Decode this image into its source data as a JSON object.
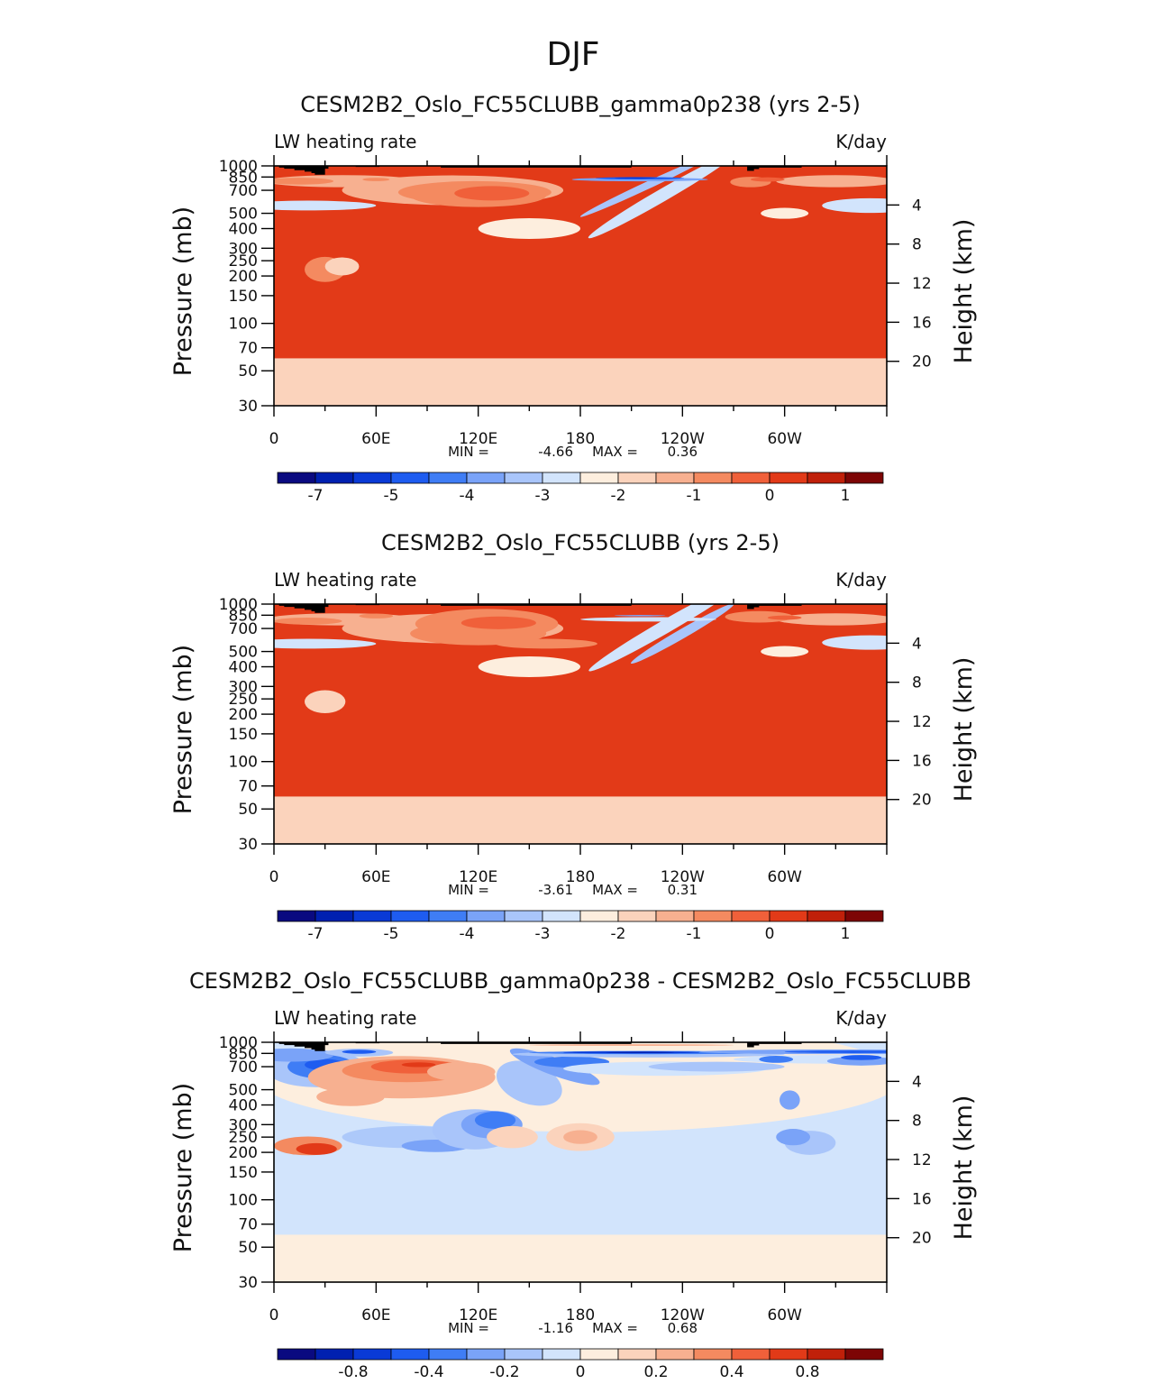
{
  "figure_title": "DJF",
  "chart_data": [
    {
      "type": "heatmap",
      "title": "CESM2B2_Oslo_FC55CLUBB_gamma0p238 (yrs 2-5)",
      "left_label": "LW heating rate",
      "right_label": "K/day",
      "ylabel": "Pressure (mb)",
      "ylabel_right": "Height (km)",
      "x_ticks": [
        "0",
        "60E",
        "120E",
        "180",
        "120W",
        "60W"
      ],
      "x_tick_lons": [
        0,
        60,
        120,
        180,
        240,
        300
      ],
      "y_ticks": [
        "30",
        "50",
        "70",
        "100",
        "150",
        "200",
        "250",
        "300",
        "400",
        "500",
        "700",
        "850",
        "1000"
      ],
      "y_tick_values": [
        30,
        50,
        70,
        100,
        150,
        200,
        250,
        300,
        400,
        500,
        700,
        850,
        1000
      ],
      "height_ticks": [
        "20",
        "16",
        "12",
        "8",
        "4"
      ],
      "height_values": [
        20,
        16,
        12,
        8,
        4
      ],
      "min_label": "MIN =",
      "min_value": "-4.66",
      "max_label": "MAX =",
      "max_value": "0.36",
      "colorbar_ticks": [
        "-7",
        "-5",
        "-4",
        "-3",
        "-2",
        "-1",
        "0",
        "1"
      ],
      "colorbar_levels": [
        -7,
        -5,
        -4,
        -3,
        -2,
        -1,
        0,
        1
      ]
    },
    {
      "type": "heatmap",
      "title": "CESM2B2_Oslo_FC55CLUBB (yrs 2-5)",
      "left_label": "LW heating rate",
      "right_label": "K/day",
      "ylabel": "Pressure (mb)",
      "ylabel_right": "Height (km)",
      "x_ticks": [
        "0",
        "60E",
        "120E",
        "180",
        "120W",
        "60W"
      ],
      "x_tick_lons": [
        0,
        60,
        120,
        180,
        240,
        300
      ],
      "y_ticks": [
        "30",
        "50",
        "70",
        "100",
        "150",
        "200",
        "250",
        "300",
        "400",
        "500",
        "700",
        "850",
        "1000"
      ],
      "y_tick_values": [
        30,
        50,
        70,
        100,
        150,
        200,
        250,
        300,
        400,
        500,
        700,
        850,
        1000
      ],
      "height_ticks": [
        "20",
        "16",
        "12",
        "8",
        "4"
      ],
      "height_values": [
        20,
        16,
        12,
        8,
        4
      ],
      "min_label": "MIN =",
      "min_value": "-3.61",
      "max_label": "MAX =",
      "max_value": "0.31",
      "colorbar_ticks": [
        "-7",
        "-5",
        "-4",
        "-3",
        "-2",
        "-1",
        "0",
        "1"
      ],
      "colorbar_levels": [
        -7,
        -5,
        -4,
        -3,
        -2,
        -1,
        0,
        1
      ]
    },
    {
      "type": "heatmap",
      "title": "CESM2B2_Oslo_FC55CLUBB_gamma0p238 - CESM2B2_Oslo_FC55CLUBB",
      "left_label": "LW heating rate",
      "right_label": "K/day",
      "ylabel": "Pressure (mb)",
      "ylabel_right": "Height (km)",
      "x_ticks": [
        "0",
        "60E",
        "120E",
        "180",
        "120W",
        "60W"
      ],
      "x_tick_lons": [
        0,
        60,
        120,
        180,
        240,
        300
      ],
      "y_ticks": [
        "30",
        "50",
        "70",
        "100",
        "150",
        "200",
        "250",
        "300",
        "400",
        "500",
        "700",
        "850",
        "1000"
      ],
      "y_tick_values": [
        30,
        50,
        70,
        100,
        150,
        200,
        250,
        300,
        400,
        500,
        700,
        850,
        1000
      ],
      "height_ticks": [
        "20",
        "16",
        "12",
        "8",
        "4"
      ],
      "height_values": [
        20,
        16,
        12,
        8,
        4
      ],
      "min_label": "MIN =",
      "min_value": "-1.16",
      "max_label": "MAX =",
      "max_value": "0.68",
      "colorbar_ticks": [
        "-0.8",
        "-0.4",
        "-0.2",
        "0",
        "0.2",
        "0.4",
        "0.8"
      ],
      "colorbar_levels": [
        -0.8,
        -0.4,
        -0.2,
        0,
        0.2,
        0.4,
        0.8
      ]
    }
  ],
  "palette": [
    "#0a0a80",
    "#0020b0",
    "#0a3ad6",
    "#1e5cf0",
    "#3f7df5",
    "#7aa3f8",
    "#a9c5fa",
    "#d2e4fc",
    "#fdeede",
    "#fbd3bc",
    "#f7b090",
    "#f48a60",
    "#f0603a",
    "#e23a18",
    "#c0200a",
    "#7d0505"
  ],
  "topo_color": "#000000"
}
